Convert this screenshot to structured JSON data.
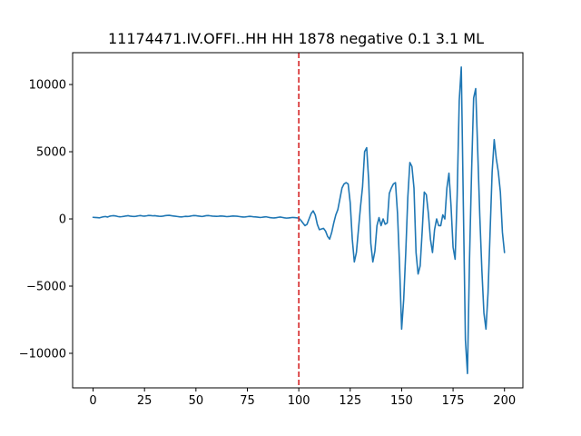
{
  "chart_data": {
    "type": "line",
    "title": "11174471.IV.OFFI..HH HH 1878 negative 0.1 3.1 ML",
    "xlabel": "",
    "ylabel": "",
    "xlim": [
      -9.95,
      208.95
    ],
    "ylim": [
      -12570,
      12370
    ],
    "x_ticks": [
      0,
      25,
      50,
      75,
      100,
      125,
      150,
      175,
      200
    ],
    "y_ticks": [
      -10000,
      -5000,
      0,
      5000,
      10000
    ],
    "grid": false,
    "legend": "none",
    "series": [
      {
        "color": "#1f77b4",
        "x_start": 0,
        "x_step": 1,
        "values": [
          120,
          110,
          100,
          80,
          120,
          160,
          180,
          140,
          200,
          230,
          240,
          220,
          180,
          160,
          170,
          190,
          220,
          240,
          210,
          190,
          180,
          200,
          230,
          250,
          220,
          210,
          230,
          260,
          250,
          230,
          240,
          220,
          200,
          190,
          210,
          240,
          260,
          270,
          240,
          220,
          200,
          180,
          160,
          150,
          170,
          190,
          180,
          200,
          230,
          250,
          240,
          220,
          200,
          180,
          210,
          240,
          250,
          230,
          210,
          200,
          190,
          200,
          220,
          210,
          190,
          170,
          180,
          200,
          220,
          210,
          200,
          180,
          160,
          140,
          150,
          170,
          190,
          180,
          160,
          150,
          130,
          110,
          120,
          140,
          160,
          130,
          100,
          80,
          70,
          90,
          120,
          140,
          110,
          80,
          60,
          70,
          90,
          110,
          100,
          80,
          60,
          -100,
          -300,
          -500,
          -400,
          0,
          400,
          600,
          300,
          -400,
          -800,
          -750,
          -700,
          -900,
          -1300,
          -1500,
          -1000,
          -300,
          300,
          700,
          1500,
          2300,
          2600,
          2700,
          2600,
          1200,
          -1500,
          -3200,
          -2500,
          -800,
          900,
          2400,
          5000,
          5300,
          2800,
          -1800,
          -3200,
          -2400,
          -500,
          100,
          -500,
          0,
          -400,
          -300,
          1900,
          2300,
          2600,
          2700,
          400,
          -3500,
          -8200,
          -6000,
          -2500,
          1600,
          4200,
          3900,
          2300,
          -2500,
          -4100,
          -3500,
          -900,
          2000,
          1800,
          400,
          -1500,
          -2500,
          -800,
          0,
          -500,
          -500,
          300,
          0,
          2300,
          3400,
          1000,
          -2100,
          -3000,
          1800,
          8800,
          11300,
          1000,
          -9000,
          -11500,
          -3000,
          3500,
          9000,
          9700,
          5000,
          200,
          -3800,
          -7000,
          -8200,
          -5500,
          -1000,
          3500,
          5900,
          4500,
          3500,
          2000,
          -1000,
          -2500
        ]
      }
    ],
    "annotations": [
      {
        "type": "vline",
        "x": 100,
        "color": "#d62728",
        "style": "dashed"
      }
    ]
  }
}
